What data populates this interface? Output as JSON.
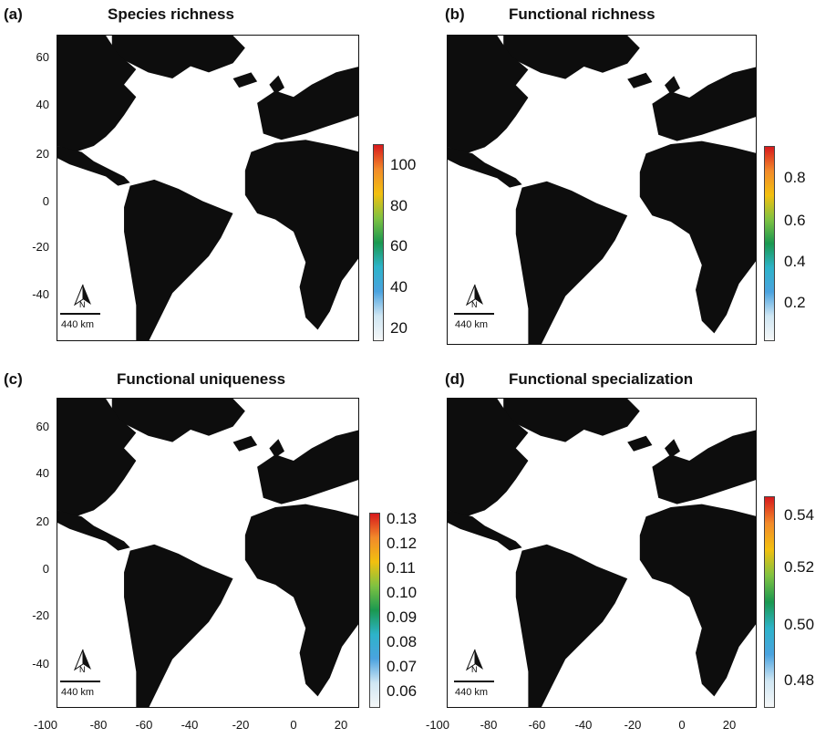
{
  "panels": [
    {
      "letter": "(a)",
      "title": "Species richness",
      "legend": [
        "100",
        "80",
        "60",
        "40",
        "20"
      ],
      "gradient": [
        "#d7191c",
        "#f28a2a",
        "#f2c00f",
        "#7fc241",
        "#1a9850",
        "#2db3c9",
        "#4aa3df",
        "#cfe6f3",
        "#f5f7f8"
      ]
    },
    {
      "letter": "(b)",
      "title": "Functional richness",
      "legend": [
        "0.8",
        "0.6",
        "0.4",
        "0.2"
      ],
      "gradient": [
        "#d7191c",
        "#f28a2a",
        "#f2c00f",
        "#7fc241",
        "#1a9850",
        "#2db3c9",
        "#4aa3df",
        "#cfe6f3",
        "#f5f7f8"
      ]
    },
    {
      "letter": "(c)",
      "title": "Functional uniqueness",
      "legend": [
        "0.13",
        "0.12",
        "0.11",
        "0.10",
        "0.09",
        "0.08",
        "0.07",
        "0.06"
      ],
      "gradient": [
        "#d7191c",
        "#f28a2a",
        "#f2c00f",
        "#7fc241",
        "#1a9850",
        "#2db3c9",
        "#4aa3df",
        "#cfe6f3",
        "#f5f7f8"
      ]
    },
    {
      "letter": "(d)",
      "title": "Functional specialization",
      "legend": [
        "0.54",
        "0.52",
        "0.50",
        "0.48"
      ],
      "gradient": [
        "#d7191c",
        "#f28a2a",
        "#f2c00f",
        "#7fc241",
        "#1a9850",
        "#2db3c9",
        "#4aa3df",
        "#cfe6f3",
        "#f5f7f8"
      ]
    }
  ],
  "yticks": [
    "60",
    "40",
    "20",
    "0",
    "-20",
    "-40"
  ],
  "xticks": [
    "-100",
    "-80",
    "-60",
    "-40",
    "-20",
    "0",
    "20"
  ],
  "scale_label": "440 km",
  "north_label": "N",
  "colors": {
    "land": "#0d0d0d",
    "ocean": "#ffffff",
    "frame": "#111111"
  }
}
